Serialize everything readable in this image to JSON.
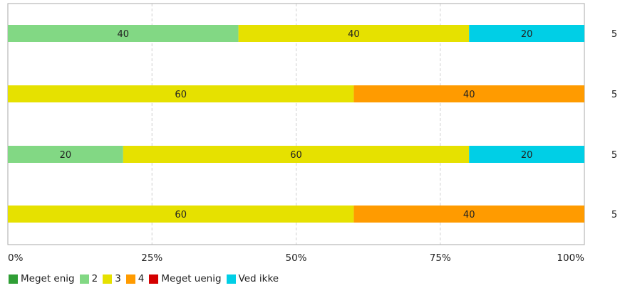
{
  "chart_data": {
    "type": "bar",
    "orientation": "horizontal",
    "stacked": true,
    "normalized": true,
    "xlim": [
      0,
      100
    ],
    "x_ticks": [
      "0%",
      "25%",
      "50%",
      "75%",
      "100%"
    ],
    "grid": true,
    "legend_position": "bottom-left",
    "series": [
      {
        "name": "Meget enig",
        "color": "#2f9e35",
        "values": [
          0,
          0,
          0,
          0
        ]
      },
      {
        "name": "2",
        "color": "#82d884",
        "values": [
          40,
          0,
          20,
          0
        ]
      },
      {
        "name": "3",
        "color": "#e6e100",
        "values": [
          40,
          60,
          60,
          60
        ]
      },
      {
        "name": "4",
        "color": "#ff9b00",
        "values": [
          0,
          40,
          0,
          40
        ]
      },
      {
        "name": "Meget uenig",
        "color": "#d40000",
        "values": [
          0,
          0,
          0,
          0
        ]
      },
      {
        "name": "Ved ikke",
        "color": "#00cfe6",
        "values": [
          20,
          0,
          20,
          0
        ]
      }
    ],
    "totals": [
      "5",
      "5",
      "5",
      "5"
    ]
  }
}
